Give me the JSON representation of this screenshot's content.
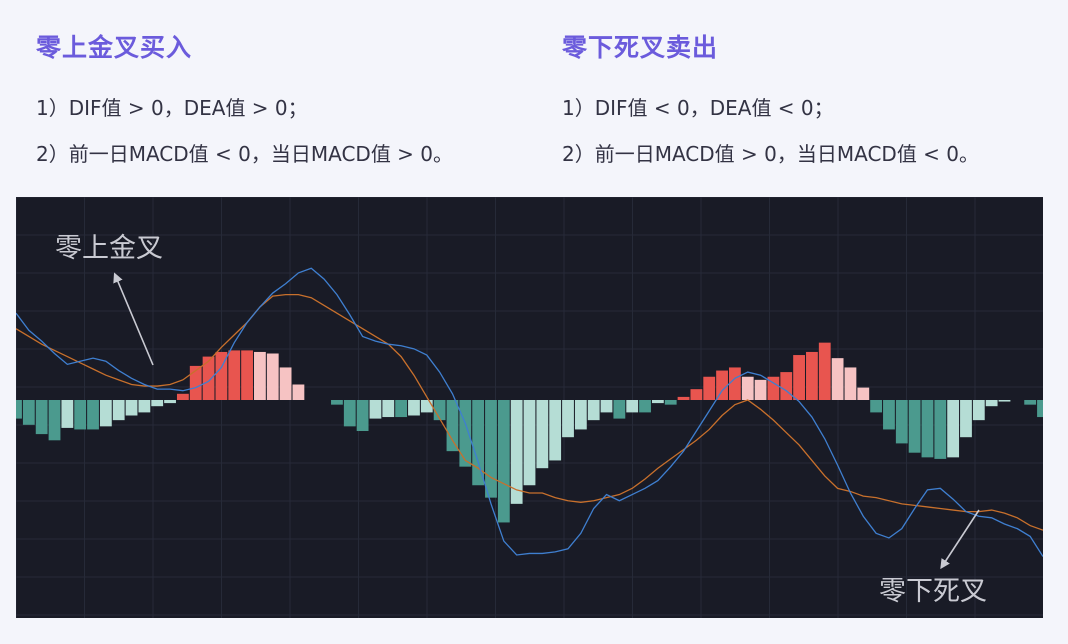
{
  "rules": [
    {
      "title": "零上金叉买入",
      "conditions": [
        "1）DIF值 > 0，DEA值 > 0；",
        "2）前一日MACD值 < 0，当日MACD值 > 0。"
      ]
    },
    {
      "title": "零下死叉卖出",
      "conditions": [
        "1）DIF值 < 0，DEA值 < 0；",
        "2）前一日MACD值 > 0，当日MACD值 < 0。"
      ]
    }
  ],
  "colors": {
    "background": "#191b26",
    "grid": "#262a38",
    "dif_line": "#3f7fd0",
    "dea_line": "#c8702c",
    "hist_pos_strong": "#e8554f",
    "hist_pos_weak": "#f6c3c3",
    "hist_neg_strong": "#4b9a8e",
    "hist_neg_weak": "#b5ddd5",
    "annotation": "#c9cad2"
  },
  "chart_data": {
    "type": "line",
    "subtype": "MACD",
    "grid": true,
    "ylim": [
      -13,
      9
    ],
    "x_count": 81,
    "series": [
      {
        "kind": "line",
        "values": [
          5.6,
          4.5,
          3.8,
          3.0,
          2.3,
          2.5,
          2.7,
          2.5,
          1.9,
          1.4,
          1.0,
          0.7,
          0.7,
          0.6,
          0.8,
          1.2,
          2.1,
          3.7,
          5.0,
          6.0,
          6.9,
          7.5,
          8.2,
          8.5,
          7.8,
          6.8,
          5.5,
          4.1,
          3.8,
          3.6,
          3.5,
          3.3,
          2.9,
          1.8,
          0.4,
          -1.5,
          -4.0,
          -6.7,
          -9.1,
          -10.0,
          -9.9,
          -9.9,
          -9.8,
          -9.6,
          -8.6,
          -7.0,
          -6.1,
          -6.5,
          -6.1,
          -5.7,
          -5.2,
          -4.3,
          -3.3,
          -2.0,
          -0.7,
          0.6,
          1.4,
          1.8,
          1.6,
          1.1,
          0.6,
          -0.1,
          -1.1,
          -2.5,
          -4.2,
          -6.0,
          -7.5,
          -8.6,
          -8.9,
          -8.3,
          -7.0,
          -5.8,
          -5.7,
          -6.4,
          -7.2,
          -7.5,
          -7.6,
          -8.0,
          -8.3,
          -8.8,
          -10.1
        ]
      },
      {
        "kind": "line",
        "values": [
          4.6,
          4.1,
          3.6,
          3.2,
          2.8,
          2.4,
          2.0,
          1.6,
          1.3,
          1.0,
          0.9,
          0.9,
          1.0,
          1.3,
          1.9,
          2.5,
          3.4,
          4.2,
          5.0,
          6.0,
          6.7,
          6.8,
          6.8,
          6.6,
          6.1,
          5.6,
          5.1,
          4.6,
          4.1,
          3.6,
          2.8,
          1.6,
          0.2,
          -1.2,
          -2.6,
          -3.9,
          -4.4,
          -5.0,
          -5.4,
          -5.8,
          -6.0,
          -6.0,
          -6.3,
          -6.5,
          -6.6,
          -6.5,
          -6.3,
          -6.1,
          -5.7,
          -5.1,
          -4.4,
          -3.8,
          -3.2,
          -2.6,
          -1.9,
          -1.0,
          -0.3,
          0.0,
          -0.6,
          -1.3,
          -2.1,
          -2.9,
          -3.9,
          -4.9,
          -5.7,
          -5.9,
          -6.2,
          -6.3,
          -6.5,
          -6.7,
          -6.8,
          -6.9,
          -7.0,
          -7.1,
          -7.2,
          -7.2,
          -7.1,
          -7.3,
          -7.6,
          -8.1,
          -8.4
        ]
      },
      {
        "kind": "bar",
        "values": [
          -1.2,
          -1.6,
          -2.2,
          -2.6,
          -1.8,
          -1.9,
          -1.9,
          -1.7,
          -1.3,
          -1.0,
          -0.8,
          -0.4,
          -0.2,
          0.4,
          2.2,
          2.8,
          3.1,
          3.2,
          3.2,
          3.1,
          3.0,
          2.1,
          1.0,
          0,
          0,
          -0.3,
          -1.7,
          -2.0,
          -1.2,
          -1.1,
          -1.1,
          -1.0,
          -0.8,
          -1.3,
          -3.3,
          -4.3,
          -5.5,
          -6.3,
          -7.9,
          -6.7,
          -5.5,
          -4.4,
          -3.9,
          -2.4,
          -1.9,
          -1.3,
          -0.8,
          -1.2,
          -0.8,
          -0.8,
          -0.2,
          -0.3,
          0.2,
          0.7,
          1.5,
          1.9,
          2.1,
          1.5,
          1.3,
          1.5,
          1.8,
          2.9,
          3.1,
          3.7,
          2.7,
          2.1,
          0.8,
          -0.8,
          -1.9,
          -2.8,
          -3.4,
          -3.7,
          -3.8,
          -3.7,
          -2.4,
          -1.3,
          -0.4,
          -0.1,
          0,
          -0.3,
          -1.1
        ]
      }
    ],
    "annotations": [
      "零上金叉",
      "零下死叉"
    ]
  }
}
